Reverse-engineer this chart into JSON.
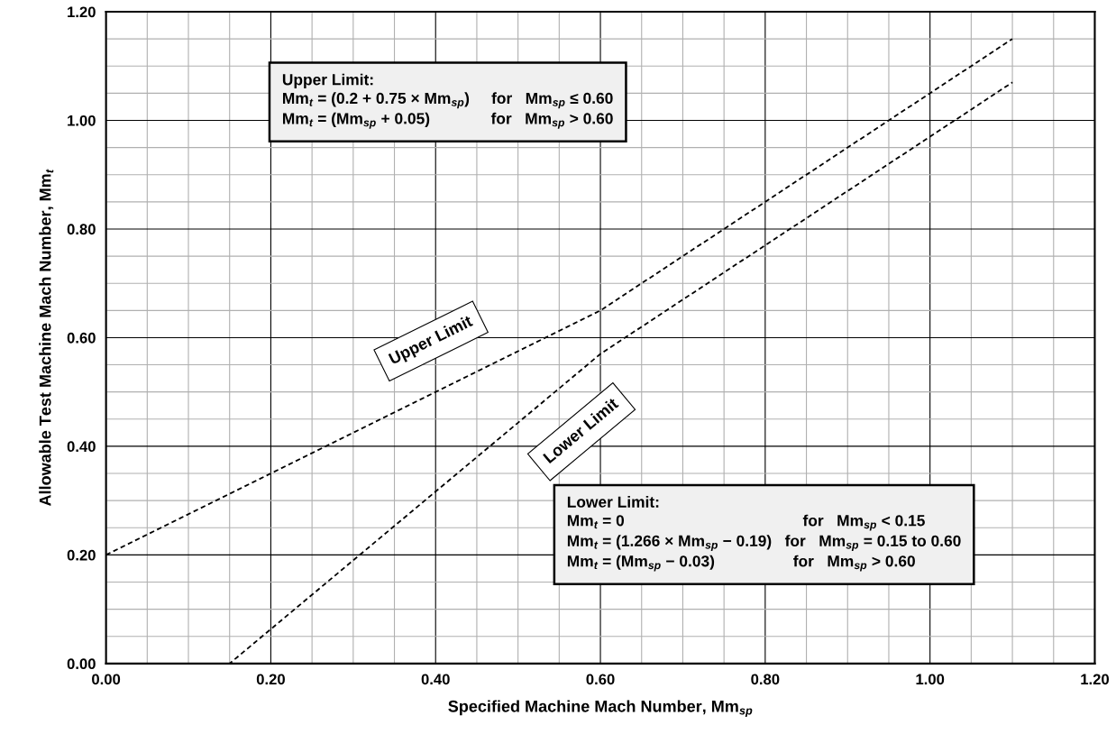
{
  "chart_data": {
    "type": "line",
    "xlabel": "Specified Machine Mach Number, Mm$_{sp}$",
    "ylabel": "Allowable Test Machine Mach Number, Mm$_{t}$",
    "series": [
      {
        "name": "Upper Limit",
        "color": "#000000",
        "x": [
          0,
          0.6,
          1.1
        ],
        "values": [
          0.2,
          0.65,
          1.15
        ]
      },
      {
        "name": "Lower Limit",
        "color": "#000000",
        "x": [
          0,
          0.15,
          0.6,
          1.1
        ],
        "values": [
          0,
          0,
          0.57,
          1.07
        ]
      }
    ],
    "annotations": [
      "Upper Limit:\nMm$_{t}$ = (0.2 + 0.75 × Mm$_{sp}$)     for   Mm$_{sp}$ ≤ 0.60\nMm$_{t}$ = (Mm$_{sp}$ + 0.05)              for   Mm$_{sp}$ > 0.60",
      "Lower Limit:\nMm$_{t}$ = 0                                         for   Mm$_{sp}$ < 0.15\nMm$_{t}$ = (1.266 × Mm$_{sp}$ − 0.19)   for   Mm$_{sp}$ = 0.15 to 0.60\nMm$_{t}$ = (Mm$_{sp}$ − 0.03)                  for   Mm$_{sp}$ > 0.60"
    ],
    "xlim": [
      0,
      1.2
    ],
    "ylim": [
      0,
      1.2
    ],
    "xticks": [
      {
        "value": 0,
        "label": "0.00"
      },
      {
        "value": 0.2,
        "label": "0.20"
      },
      {
        "value": 0.4,
        "label": "0.40"
      },
      {
        "value": 0.6,
        "label": "0.60"
      },
      {
        "value": 0.8,
        "label": "0.80"
      },
      {
        "value": 1.0,
        "label": "1.00"
      },
      {
        "value": 1.2,
        "label": "1.20"
      }
    ],
    "yticks": [
      {
        "value": 0,
        "label": "0.00"
      },
      {
        "value": 0.2,
        "label": "0.20"
      },
      {
        "value": 0.4,
        "label": "0.40"
      },
      {
        "value": 0.6,
        "label": "0.60"
      },
      {
        "value": 0.8,
        "label": "0.80"
      },
      {
        "value": 1.0,
        "label": "1.00"
      },
      {
        "value": 1.2,
        "label": "1.20"
      }
    ],
    "grid": true,
    "line_style": "dashed",
    "marker": "none",
    "legend": false
  }
}
